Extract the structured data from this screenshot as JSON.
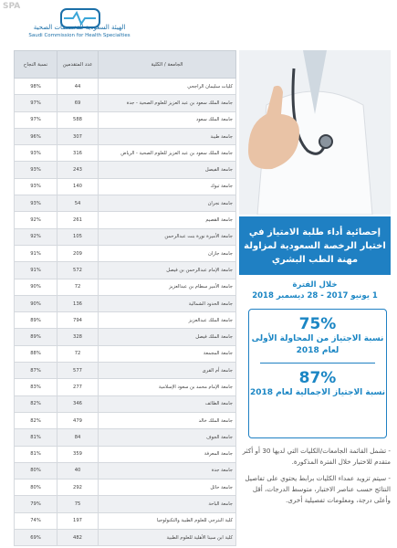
{
  "header": {
    "watermark": "SPA",
    "title_ar": "الهيئة السعودية للتخصصات الصحية",
    "title_en": "Saudi Commission for Health Specialties"
  },
  "table": {
    "columns": [
      "الجامعة / الكلية",
      "عدد المتقدمين",
      "نسبة النجاح"
    ],
    "rows": [
      [
        "كليات سليمان الراجحي",
        "44",
        "98%"
      ],
      [
        "جامعة الملك سعود بن عبد العزيز للعلوم الصحية - جدة",
        "69",
        "97%"
      ],
      [
        "جامعة الملك سعود",
        "588",
        "97%"
      ],
      [
        "جامعة طيبة",
        "307",
        "96%"
      ],
      [
        "جامعة الملك سعود بن عبد العزيز للعلوم الصحية - الرياض",
        "316",
        "93%"
      ],
      [
        "جامعة الفيصل",
        "243",
        "93%"
      ],
      [
        "جامعة تبوك",
        "140",
        "93%"
      ],
      [
        "جامعة نجران",
        "54",
        "93%"
      ],
      [
        "جامعة القصيم",
        "261",
        "92%"
      ],
      [
        "جامعة الأميرة نورة بنت عبدالرحمن",
        "105",
        "92%"
      ],
      [
        "جامعة جازان",
        "209",
        "91%"
      ],
      [
        "جامعة الإمام عبدالرحمن بن فيصل",
        "572",
        "91%"
      ],
      [
        "جامعة الأمير سطام بن عبدالعزيز",
        "72",
        "90%"
      ],
      [
        "جامعة الحدود الشمالية",
        "136",
        "90%"
      ],
      [
        "جامعة الملك عبدالعزيز",
        "794",
        "89%"
      ],
      [
        "جامعة الملك فيصل",
        "328",
        "89%"
      ],
      [
        "جامعة المجمعة",
        "72",
        "88%"
      ],
      [
        "جامعة أم القرى",
        "577",
        "87%"
      ],
      [
        "جامعة الإمام محمد بن سعود الإسلامية",
        "277",
        "83%"
      ],
      [
        "جامعة الطائف",
        "346",
        "82%"
      ],
      [
        "جامعة الملك خالد",
        "479",
        "82%"
      ],
      [
        "جامعة الجوف",
        "84",
        "81%"
      ],
      [
        "جامعة المعرفة",
        "359",
        "81%"
      ],
      [
        "جامعة جدة",
        "40",
        "80%"
      ],
      [
        "جامعة حائل",
        "292",
        "80%"
      ],
      [
        "جامعة الباحة",
        "75",
        "79%"
      ],
      [
        "كلية البترجي للعلوم الطبية والتكنولوجيا",
        "197",
        "74%"
      ],
      [
        "كلية ابن سينا الأهلية للعلوم الطبية",
        "482",
        "69%"
      ]
    ]
  },
  "banner": {
    "title": "إحصائية أداء طلبة الامتياز في اختبار الرخصة السعودية لمزاولة مهنة الطب البشري"
  },
  "period": {
    "label": "خلال الفترة",
    "range": "1 يونيو 2017 - 28 ديسمبر 2018"
  },
  "stats": [
    {
      "value": "75%",
      "caption": "نسبة الاجتياز من المحاولة الأولى لعام 2018"
    },
    {
      "value": "87%",
      "caption": "نسبة الاجتياز الاجمالية لعام 2018"
    }
  ],
  "notes": [
    "- تشمل القائمة الجامعات/الكليات التي لديها 30 أو أكثر متقدم للاختبار خلال الفترة المذكورة.",
    "- سيتم تزويد عمداء الكليات برابط يحتوي على تفاصيل النتائج حسب عناصر الاختبار، متوسط الدرجات، أقل وأعلى درجة، ومعلومات تفصيلية أخرى."
  ]
}
